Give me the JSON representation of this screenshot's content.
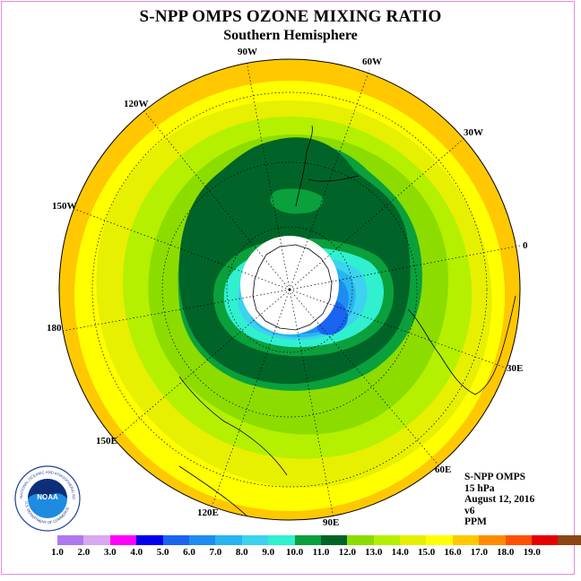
{
  "header": {
    "title": "S-NPP OMPS OZONE MIXING RATIO",
    "subtitle": "Southern Hemisphere"
  },
  "map": {
    "projection": "south-polar-stereographic",
    "longitude_labels": [
      "90W",
      "60W",
      "30W",
      "0",
      "30E",
      "60E",
      "90E",
      "120E",
      "150E",
      "180",
      "150W",
      "120W"
    ]
  },
  "info": {
    "instrument": "S-NPP OMPS",
    "level": "15 hPa",
    "date": "August 12, 2016",
    "version": "v6",
    "units": "PPM"
  },
  "legend": {
    "ticks": [
      "1.0",
      "2.0",
      "3.0",
      "4.0",
      "5.0",
      "6.0",
      "7.0",
      "8.0",
      "9.0",
      "10.0",
      "11.0",
      "12.0",
      "13.0",
      "14.0",
      "15.0",
      "16.0",
      "17.0",
      "18.0",
      "19.0"
    ],
    "colors": [
      "#b078f0",
      "#d8a8f0",
      "#ff00ff",
      "#0000ee",
      "#1a64f0",
      "#1e8cf0",
      "#28b4f0",
      "#3cd2f0",
      "#30f0d0",
      "#0aa03c",
      "#006428",
      "#8cdc00",
      "#b4f000",
      "#e6f000",
      "#ffff00",
      "#ffc800",
      "#ff8c00",
      "#ff5000",
      "#e60000",
      "#8c4614"
    ]
  },
  "logo": {
    "text": "NOAA",
    "ring_text": "NATIONAL OCEANIC AND ATMOSPHERIC ADMINISTRATION",
    "ring_text_bottom": "U.S. DEPARTMENT OF COMMERCE"
  }
}
